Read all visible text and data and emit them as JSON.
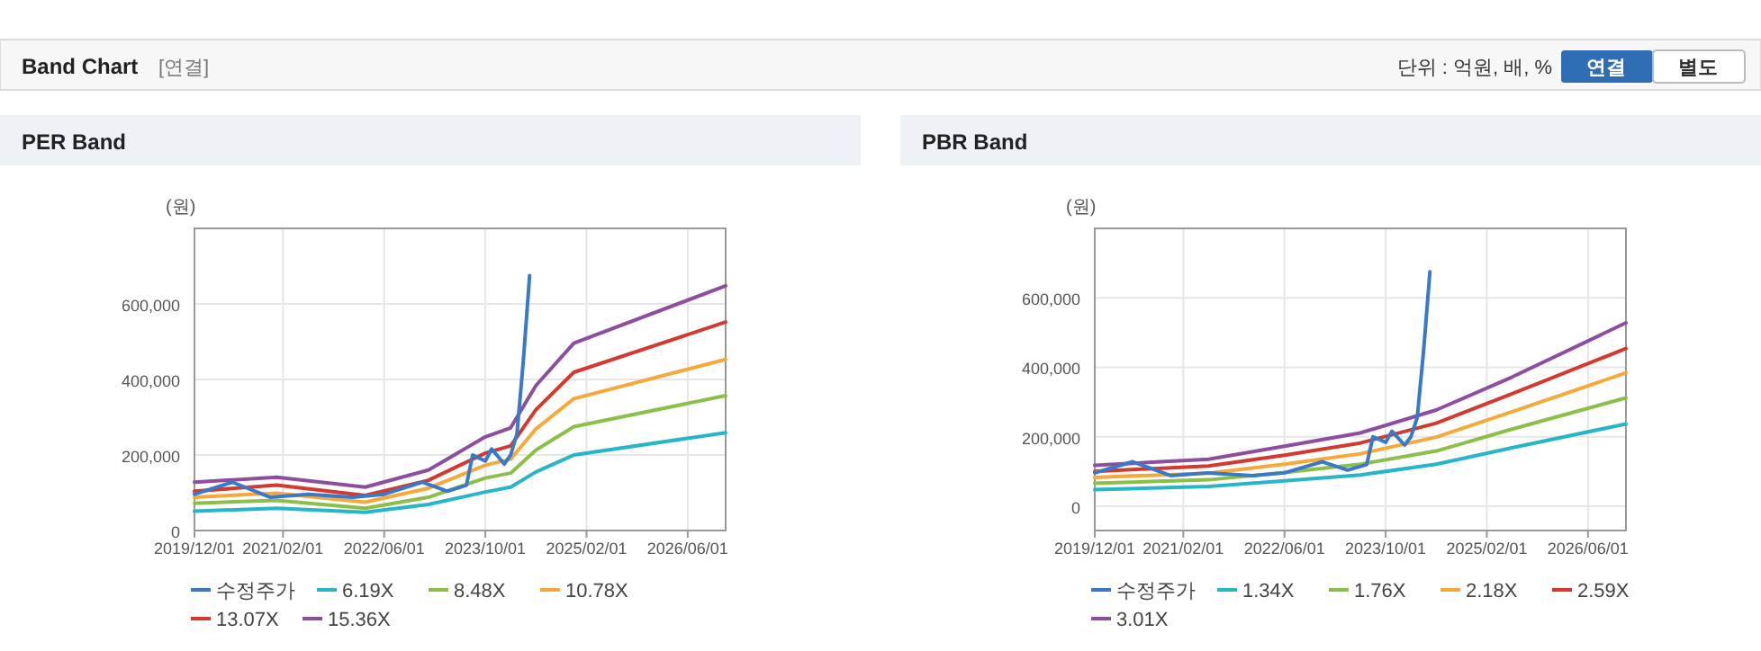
{
  "chart_data": [
    {
      "type": "line",
      "title": "PER Band",
      "ylabel": "(원)",
      "annotations": [
        "Band Chart",
        "[연결]",
        "단위 : 억원, 배, %",
        "연결",
        "별도"
      ],
      "xlim": [
        "2019-12",
        "2026-12"
      ],
      "xticks": [
        {
          "value": "2019-12",
          "label": "2019/12/01"
        },
        {
          "value": "2021-02",
          "label": "2021/02/01"
        },
        {
          "value": "2022-06",
          "label": "2022/06/01"
        },
        {
          "value": "2023-10",
          "label": "2023/10/01"
        },
        {
          "value": "2025-02",
          "label": "2025/02/01"
        },
        {
          "value": "2026-06",
          "label": "2026/06/01"
        }
      ],
      "ylim": [
        0,
        800000
      ],
      "yticks": [
        0,
        {
          "value": 200000,
          "label": "200,000"
        },
        {
          "value": 400000,
          "label": "400,000"
        },
        {
          "value": 600000,
          "label": "600,000"
        }
      ],
      "grid": true,
      "legend": "bottom",
      "series": [
        {
          "name": "수정주가",
          "color": "#3a78c8",
          "x": [
            "2019-12",
            "2020-06",
            "2020-12",
            "2021-06",
            "2022-01",
            "2022-06",
            "2022-12",
            "2023-04",
            "2023-07",
            "2023-08",
            "2023-10",
            "2023-11",
            "2024-01",
            "2024-02",
            "2024-03",
            "2024-04",
            "2024-05"
          ],
          "values": [
            96000,
            128000,
            88000,
            96000,
            88000,
            96000,
            128000,
            104000,
            120000,
            200000,
            184000,
            216000,
            176000,
            200000,
            256000,
            448000,
            675000
          ]
        },
        {
          "name": "6.19X",
          "color": "#27b5c8",
          "x": [
            "2019-12",
            "2021-01",
            "2022-03",
            "2023-01",
            "2023-10",
            "2024-02",
            "2024-06",
            "2024-12",
            "2026-12"
          ],
          "values": [
            51000,
            59000,
            48000,
            69000,
            102000,
            115000,
            155000,
            200000,
            259000
          ]
        },
        {
          "name": "8.48X",
          "color": "#8cbf4a",
          "x": [
            "2019-12",
            "2021-01",
            "2022-03",
            "2023-01",
            "2023-10",
            "2024-02",
            "2024-06",
            "2024-12",
            "2026-12"
          ],
          "values": [
            72000,
            80000,
            59000,
            88000,
            139000,
            152000,
            213000,
            275000,
            357000
          ]
        },
        {
          "name": "10.78X",
          "color": "#f5a93a",
          "x": [
            "2019-12",
            "2021-01",
            "2022-03",
            "2023-01",
            "2023-10",
            "2024-02",
            "2024-06",
            "2024-12",
            "2026-12"
          ],
          "values": [
            88000,
            99000,
            75000,
            112000,
            173000,
            189000,
            269000,
            349000,
            453000
          ]
        },
        {
          "name": "13.07X",
          "color": "#d33a2f",
          "x": [
            "2019-12",
            "2021-01",
            "2022-03",
            "2023-01",
            "2023-10",
            "2024-02",
            "2024-06",
            "2024-12",
            "2026-12"
          ],
          "values": [
            104000,
            120000,
            93000,
            133000,
            205000,
            224000,
            320000,
            419000,
            552000
          ]
        },
        {
          "name": "15.36X",
          "color": "#8e4ea0",
          "x": [
            "2019-12",
            "2021-01",
            "2022-03",
            "2023-01",
            "2023-10",
            "2024-02",
            "2024-06",
            "2024-12",
            "2026-12"
          ],
          "values": [
            128000,
            141000,
            115000,
            160000,
            248000,
            272000,
            384000,
            496000,
            648000
          ]
        }
      ]
    },
    {
      "type": "line",
      "title": "PBR Band",
      "ylabel": "(원)",
      "xlim": [
        "2019-12",
        "2026-12"
      ],
      "xticks": [
        {
          "value": "2019-12",
          "label": "2019/12/01"
        },
        {
          "value": "2021-02",
          "label": "2021/02/01"
        },
        {
          "value": "2022-06",
          "label": "2022/06/01"
        },
        {
          "value": "2023-10",
          "label": "2023/10/01"
        },
        {
          "value": "2025-02",
          "label": "2025/02/01"
        },
        {
          "value": "2026-06",
          "label": "2026/06/01"
        }
      ],
      "ylim": [
        -70000,
        800000
      ],
      "yticks": [
        0,
        {
          "value": 200000,
          "label": "200,000"
        },
        {
          "value": 400000,
          "label": "400,000"
        },
        {
          "value": 600000,
          "label": "600,000"
        }
      ],
      "grid": true,
      "legend": "bottom",
      "series": [
        {
          "name": "수정주가",
          "color": "#3a78c8",
          "x": [
            "2019-12",
            "2020-06",
            "2020-12",
            "2021-06",
            "2022-01",
            "2022-06",
            "2022-12",
            "2023-04",
            "2023-07",
            "2023-08",
            "2023-10",
            "2023-11",
            "2024-01",
            "2024-02",
            "2024-03",
            "2024-04",
            "2024-05"
          ],
          "values": [
            96000,
            128000,
            88000,
            96000,
            88000,
            96000,
            128000,
            104000,
            120000,
            200000,
            184000,
            216000,
            176000,
            200000,
            256000,
            448000,
            675000
          ]
        },
        {
          "name": "1.34X",
          "color": "#27b5c8",
          "x": [
            "2019-12",
            "2021-06",
            "2022-06",
            "2023-06",
            "2024-06",
            "2025-06",
            "2026-12"
          ],
          "values": [
            48000,
            57000,
            73000,
            90000,
            121000,
            168000,
            237000
          ]
        },
        {
          "name": "1.76X",
          "color": "#8cbf4a",
          "x": [
            "2019-12",
            "2021-06",
            "2022-06",
            "2023-06",
            "2024-06",
            "2025-06",
            "2026-12"
          ],
          "values": [
            66000,
            76000,
            97000,
            121000,
            159000,
            222000,
            312000
          ]
        },
        {
          "name": "2.18X",
          "color": "#f5a93a",
          "x": [
            "2019-12",
            "2021-06",
            "2022-06",
            "2023-06",
            "2024-06",
            "2025-06",
            "2026-12"
          ],
          "values": [
            83000,
            95000,
            121000,
            151000,
            199000,
            272000,
            384000
          ]
        },
        {
          "name": "2.59X",
          "color": "#d33a2f",
          "x": [
            "2019-12",
            "2021-06",
            "2022-06",
            "2023-06",
            "2024-06",
            "2025-06",
            "2026-12"
          ],
          "values": [
            100000,
            116000,
            147000,
            182000,
            239000,
            324000,
            454000
          ]
        },
        {
          "name": "3.01X",
          "color": "#8e4ea0",
          "x": [
            "2019-12",
            "2021-06",
            "2022-06",
            "2023-06",
            "2024-06",
            "2025-06",
            "2026-12"
          ],
          "values": [
            118000,
            135000,
            173000,
            211000,
            277000,
            372000,
            528000
          ]
        }
      ]
    }
  ]
}
